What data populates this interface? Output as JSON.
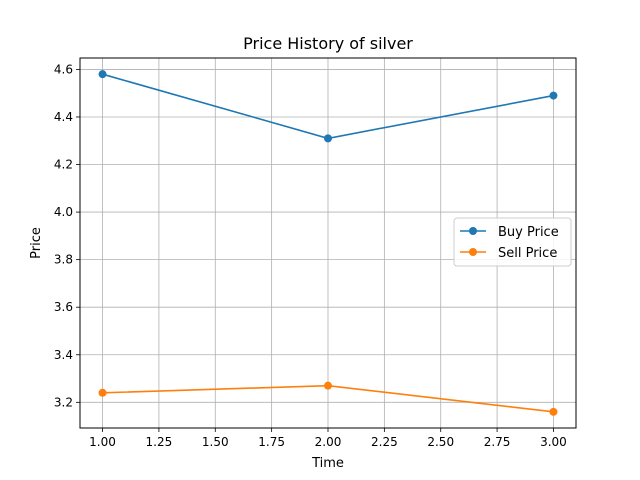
{
  "chart_data": {
    "type": "line",
    "title": "Price History of silver",
    "xlabel": "Time",
    "ylabel": "Price",
    "xlim": [
      0.9,
      3.1
    ],
    "ylim": [
      3.092,
      4.648
    ],
    "xticks": [
      1.0,
      1.25,
      1.5,
      1.75,
      2.0,
      2.25,
      2.5,
      2.75,
      3.0
    ],
    "xtick_labels": [
      "1.00",
      "1.25",
      "1.50",
      "1.75",
      "2.00",
      "2.25",
      "2.50",
      "2.75",
      "3.00"
    ],
    "yticks": [
      3.2,
      3.4,
      3.6,
      3.8,
      4.0,
      4.2,
      4.4,
      4.6
    ],
    "ytick_labels": [
      "3.2",
      "3.4",
      "3.6",
      "3.8",
      "4.0",
      "4.2",
      "4.4",
      "4.6"
    ],
    "grid": true,
    "legend_position": "center-right",
    "x": [
      1,
      2,
      3
    ],
    "series": [
      {
        "name": "Buy Price",
        "color": "#1f77b4",
        "marker": "circle",
        "values": [
          4.58,
          4.31,
          4.49
        ]
      },
      {
        "name": "Sell Price",
        "color": "#ff7f0e",
        "marker": "circle",
        "values": [
          3.24,
          3.27,
          3.16
        ]
      }
    ]
  }
}
